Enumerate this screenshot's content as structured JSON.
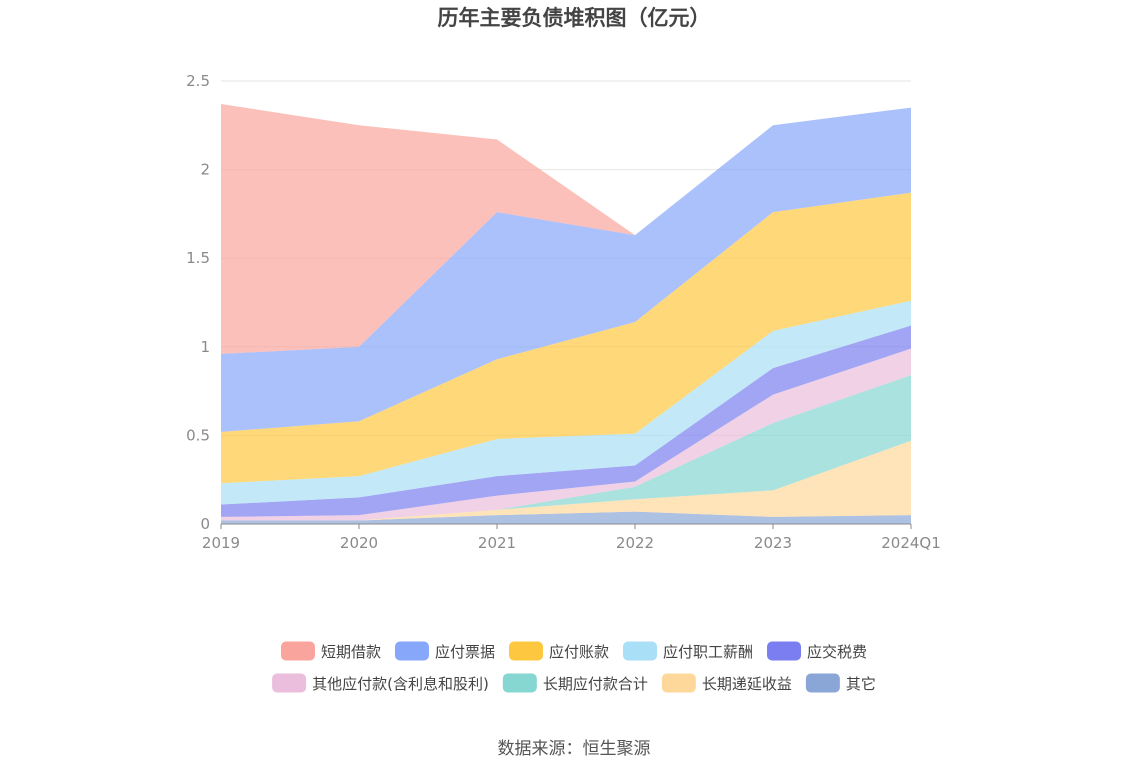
{
  "chart_data": {
    "type": "area",
    "stacked": true,
    "title": "历年主要负债堆积图（亿元）",
    "categories": [
      "2019",
      "2020",
      "2021",
      "2022",
      "2023",
      "2024Q1"
    ],
    "ylim": [
      0,
      2.5
    ],
    "yticks": [
      "0",
      "0.5",
      "1",
      "1.5",
      "2",
      "2.5"
    ],
    "grid": true,
    "legend_position": "bottom",
    "series": [
      {
        "name": "其它",
        "color": "#8aa6d6",
        "values": [
          0.02,
          0.02,
          0.05,
          0.07,
          0.04,
          0.05
        ]
      },
      {
        "name": "长期递延收益",
        "color": "#fdd89a",
        "values": [
          0.0,
          0.0,
          0.03,
          0.07,
          0.15,
          0.42
        ]
      },
      {
        "name": "长期应付款合计",
        "color": "#86d6d2",
        "values": [
          0.0,
          0.0,
          0.0,
          0.07,
          0.38,
          0.37
        ]
      },
      {
        "name": "其他应付款(含利息和股利)",
        "color": "#eabedc",
        "values": [
          0.02,
          0.03,
          0.08,
          0.03,
          0.16,
          0.15
        ]
      },
      {
        "name": "应交税费",
        "color": "#7b7ef0",
        "values": [
          0.07,
          0.1,
          0.11,
          0.09,
          0.15,
          0.13
        ]
      },
      {
        "name": "应付职工薪酬",
        "color": "#a9dff7",
        "values": [
          0.12,
          0.12,
          0.21,
          0.18,
          0.21,
          0.14
        ]
      },
      {
        "name": "应付账款",
        "color": "#fdc840",
        "values": [
          0.29,
          0.31,
          0.45,
          0.63,
          0.67,
          0.61
        ]
      },
      {
        "name": "应付票据",
        "color": "#87a7fb",
        "values": [
          0.44,
          0.42,
          0.83,
          0.49,
          0.49,
          0.48
        ]
      },
      {
        "name": "短期借款",
        "color": "#f9a59d",
        "values": [
          1.41,
          1.25,
          0.41,
          0.0,
          0.0,
          0.0
        ]
      }
    ],
    "legend_order": [
      "短期借款",
      "应付票据",
      "应付账款",
      "应付职工薪酬",
      "应交税费",
      "其他应付款(含利息和股利)",
      "长期应付款合计",
      "长期递延收益",
      "其它"
    ]
  },
  "source": "数据来源：恒生聚源"
}
